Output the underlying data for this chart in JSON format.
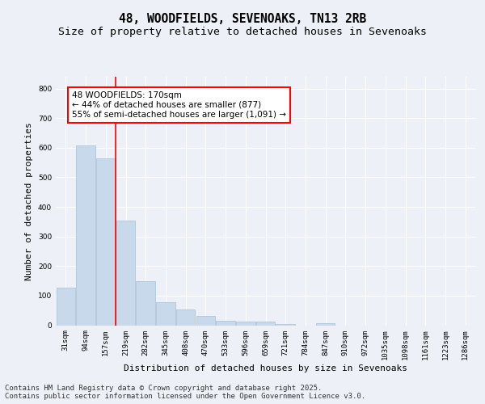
{
  "title_line1": "48, WOODFIELDS, SEVENOAKS, TN13 2RB",
  "title_line2": "Size of property relative to detached houses in Sevenoaks",
  "xlabel": "Distribution of detached houses by size in Sevenoaks",
  "ylabel": "Number of detached properties",
  "categories": [
    "31sqm",
    "94sqm",
    "157sqm",
    "219sqm",
    "282sqm",
    "345sqm",
    "408sqm",
    "470sqm",
    "533sqm",
    "596sqm",
    "659sqm",
    "721sqm",
    "784sqm",
    "847sqm",
    "910sqm",
    "972sqm",
    "1035sqm",
    "1098sqm",
    "1161sqm",
    "1223sqm",
    "1286sqm"
  ],
  "values": [
    128,
    608,
    565,
    355,
    150,
    78,
    52,
    32,
    15,
    12,
    12,
    4,
    0,
    7,
    0,
    0,
    0,
    0,
    0,
    0,
    0
  ],
  "bar_color": "#c9d9ec",
  "bar_edge_color": "#a8bfd4",
  "vline_x_index": 2,
  "vline_color": "red",
  "annotation_text": "48 WOODFIELDS: 170sqm\n← 44% of detached houses are smaller (877)\n55% of semi-detached houses are larger (1,091) →",
  "annotation_box_color": "white",
  "annotation_box_edge_color": "red",
  "ylim": [
    0,
    840
  ],
  "yticks": [
    0,
    100,
    200,
    300,
    400,
    500,
    600,
    700,
    800
  ],
  "background_color": "#edf1f7",
  "plot_background_color": "#edf1f7",
  "grid_color": "white",
  "footer_text": "Contains HM Land Registry data © Crown copyright and database right 2025.\nContains public sector information licensed under the Open Government Licence v3.0.",
  "title_fontsize": 10.5,
  "subtitle_fontsize": 9.5,
  "axis_label_fontsize": 8,
  "tick_fontsize": 6.5,
  "annotation_fontsize": 7.5,
  "footer_fontsize": 6.5
}
